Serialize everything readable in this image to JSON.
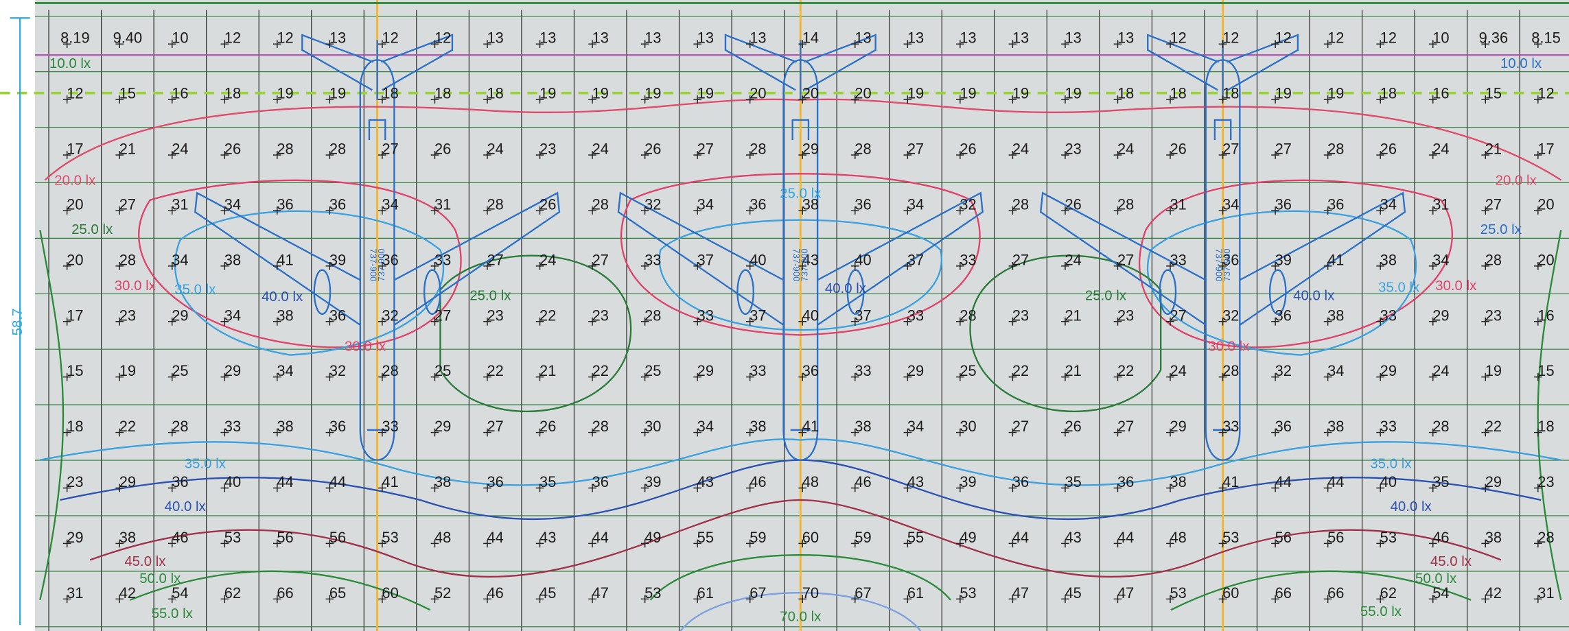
{
  "dimension": "58.7",
  "grid": {
    "rows": [
      [
        "8.19",
        "9.40",
        "10",
        "12",
        "12",
        "13",
        "12",
        "12",
        "13",
        "13",
        "13",
        "13",
        "13",
        "13",
        "14",
        "13",
        "13",
        "13",
        "13",
        "13",
        "13",
        "12",
        "12",
        "12",
        "12",
        "12",
        "10",
        "9.36",
        "8.15"
      ],
      [
        "12",
        "15",
        "16",
        "18",
        "19",
        "19",
        "18",
        "18",
        "18",
        "19",
        "19",
        "19",
        "19",
        "20",
        "20",
        "20",
        "19",
        "19",
        "19",
        "19",
        "18",
        "18",
        "18",
        "19",
        "19",
        "18",
        "16",
        "15",
        "12"
      ],
      [
        "17",
        "21",
        "24",
        "26",
        "28",
        "28",
        "27",
        "26",
        "24",
        "23",
        "24",
        "26",
        "27",
        "28",
        "29",
        "28",
        "27",
        "26",
        "24",
        "23",
        "24",
        "26",
        "27",
        "27",
        "28",
        "26",
        "24",
        "21",
        "17"
      ],
      [
        "20",
        "27",
        "31",
        "34",
        "36",
        "36",
        "34",
        "31",
        "28",
        "26",
        "28",
        "32",
        "34",
        "36",
        "38",
        "36",
        "34",
        "32",
        "28",
        "26",
        "28",
        "31",
        "34",
        "36",
        "36",
        "34",
        "31",
        "27",
        "20"
      ],
      [
        "20",
        "28",
        "34",
        "38",
        "41",
        "39",
        "36",
        "33",
        "27",
        "24",
        "27",
        "33",
        "37",
        "40",
        "43",
        "40",
        "37",
        "33",
        "27",
        "24",
        "27",
        "33",
        "36",
        "39",
        "41",
        "38",
        "34",
        "28",
        "20"
      ],
      [
        "17",
        "23",
        "29",
        "34",
        "38",
        "36",
        "32",
        "27",
        "23",
        "22",
        "23",
        "28",
        "33",
        "37",
        "40",
        "37",
        "33",
        "28",
        "23",
        "21",
        "23",
        "27",
        "32",
        "36",
        "38",
        "33",
        "29",
        "23",
        "16"
      ],
      [
        "15",
        "19",
        "25",
        "29",
        "34",
        "32",
        "28",
        "25",
        "22",
        "21",
        "22",
        "25",
        "29",
        "33",
        "36",
        "33",
        "29",
        "25",
        "22",
        "21",
        "22",
        "24",
        "28",
        "32",
        "34",
        "29",
        "24",
        "19",
        "15"
      ],
      [
        "18",
        "22",
        "28",
        "33",
        "38",
        "36",
        "33",
        "29",
        "27",
        "26",
        "28",
        "30",
        "34",
        "38",
        "41",
        "38",
        "34",
        "30",
        "27",
        "26",
        "27",
        "29",
        "33",
        "36",
        "38",
        "33",
        "28",
        "22",
        "18"
      ],
      [
        "23",
        "29",
        "36",
        "40",
        "44",
        "44",
        "41",
        "38",
        "36",
        "35",
        "36",
        "39",
        "43",
        "46",
        "48",
        "46",
        "43",
        "39",
        "36",
        "35",
        "36",
        "38",
        "41",
        "44",
        "44",
        "40",
        "35",
        "29",
        "23"
      ],
      [
        "29",
        "38",
        "46",
        "53",
        "56",
        "56",
        "53",
        "48",
        "44",
        "43",
        "44",
        "49",
        "55",
        "59",
        "60",
        "59",
        "55",
        "49",
        "44",
        "43",
        "44",
        "48",
        "53",
        "56",
        "56",
        "53",
        "46",
        "38",
        "28"
      ],
      [
        "31",
        "42",
        "54",
        "62",
        "66",
        "65",
        "60",
        "52",
        "46",
        "45",
        "47",
        "53",
        "61",
        "67",
        "70",
        "67",
        "61",
        "53",
        "47",
        "45",
        "47",
        "53",
        "60",
        "66",
        "66",
        "62",
        "54",
        "42",
        "31"
      ]
    ]
  },
  "contour_labels": [
    "10.0 lx",
    "10.0 lx",
    "20.0 lx",
    "20.0 lx",
    "25.0 lx",
    "25.0 lx",
    "25.0 lx",
    "25.0 lx",
    "25.0 lx",
    "30.0 lx",
    "30.0 lx",
    "30.0 lx",
    "30.0 lx",
    "35.0 lx",
    "35.0 lx",
    "35.0 lx",
    "35.0 lx",
    "40.0 lx",
    "40.0 lx",
    "40.0 lx",
    "40.0 lx",
    "40.0 lx",
    "45.0 lx",
    "45.0 lx",
    "50.0 lx",
    "50.0 lx",
    "55.0 lx",
    "55.0 lx",
    "70.0 lx"
  ],
  "aircraft_label": "737-900"
}
